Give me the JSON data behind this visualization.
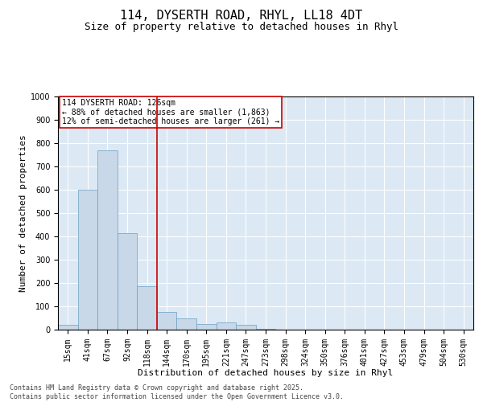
{
  "title_line1": "114, DYSERTH ROAD, RHYL, LL18 4DT",
  "title_line2": "Size of property relative to detached houses in Rhyl",
  "xlabel": "Distribution of detached houses by size in Rhyl",
  "ylabel": "Number of detached properties",
  "categories": [
    "15sqm",
    "41sqm",
    "67sqm",
    "92sqm",
    "118sqm",
    "144sqm",
    "170sqm",
    "195sqm",
    "221sqm",
    "247sqm",
    "273sqm",
    "298sqm",
    "324sqm",
    "350sqm",
    "376sqm",
    "401sqm",
    "427sqm",
    "453sqm",
    "479sqm",
    "504sqm",
    "530sqm"
  ],
  "values": [
    20,
    600,
    770,
    415,
    185,
    75,
    50,
    25,
    30,
    20,
    5,
    0,
    0,
    0,
    0,
    0,
    0,
    0,
    0,
    0,
    0
  ],
  "bar_color": "#c8d8e8",
  "bar_edge_color": "#6a9ec0",
  "vline_x_index": 4,
  "vline_color": "#cc0000",
  "annotation_text": "114 DYSERTH ROAD: 126sqm\n← 88% of detached houses are smaller (1,863)\n12% of semi-detached houses are larger (261) →",
  "annotation_box_color": "#ffffff",
  "annotation_box_edge": "#cc0000",
  "ylim": [
    0,
    1000
  ],
  "yticks": [
    0,
    100,
    200,
    300,
    400,
    500,
    600,
    700,
    800,
    900,
    1000
  ],
  "background_color": "#dce9f5",
  "footer_line1": "Contains HM Land Registry data © Crown copyright and database right 2025.",
  "footer_line2": "Contains public sector information licensed under the Open Government Licence v3.0.",
  "title_fontsize": 11,
  "subtitle_fontsize": 9,
  "axis_label_fontsize": 8,
  "tick_fontsize": 7,
  "footer_fontsize": 6
}
